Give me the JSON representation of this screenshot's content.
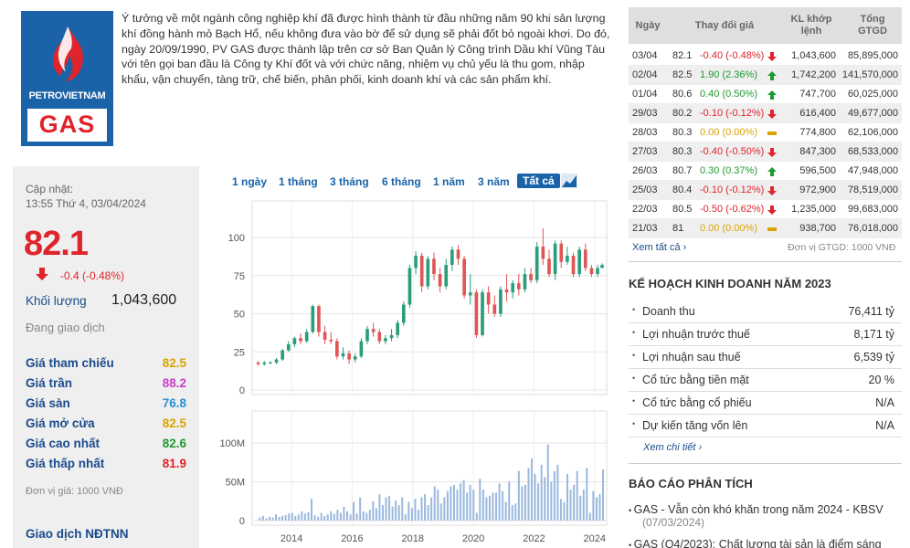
{
  "company": {
    "logo_text_top": "PETROVIETNAM",
    "logo_text_bottom": "GAS",
    "intro": "Ý tưởng về một ngành công nghiệp khí đã được hình thành từ đầu những năm 90 khi sản lượng khí đồng hành mỏ Bạch Hổ, nếu không đưa vào bờ để sử dụng sẽ phải đốt bỏ ngoài khơi. Do đó, ngày 20/09/1990, PV GAS được thành lập trên cơ sở Ban Quản lý Công trình Dầu khí Vũng Tàu với tên gọi ban đầu là Công ty Khí đốt và với chức năng, nhiệm vụ chủ yếu là thu gom, nhập khẩu, vận chuyển, tàng trữ, chế biến, phân phối, kinh doanh khí và các sản phẩm khí."
  },
  "quote": {
    "update_label": "Cập nhật:",
    "update_time": "13:55 Thứ 4, 03/04/2024",
    "price": "82.1",
    "change": "-0.4 (-0.48%)",
    "volume_label": "Khối lượng",
    "volume": "1,043,600",
    "status": "Đang giao dịch",
    "rows": [
      {
        "label": "Giá tham chiếu",
        "value": "82.5",
        "color": "#d9a400"
      },
      {
        "label": "Giá trần",
        "value": "88.2",
        "color": "#c63fc6"
      },
      {
        "label": "Giá sàn",
        "value": "76.8",
        "color": "#2b8fd6"
      },
      {
        "label": "Giá mở cửa",
        "value": "82.5",
        "color": "#d9a400"
      },
      {
        "label": "Giá cao nhất",
        "value": "82.6",
        "color": "#1f9a2f"
      },
      {
        "label": "Giá thấp nhất",
        "value": "81.9",
        "color": "#e0242b"
      }
    ],
    "unit": "Đơn vị giá: 1000 VNĐ",
    "foreign_label": "Giao dịch NĐTNN"
  },
  "chart_tabs": [
    "1 ngày",
    "1 tháng",
    "3 tháng",
    "6 tháng",
    "1 năm",
    "3 năm",
    "Tất cả"
  ],
  "chart_data": {
    "type": "candlestick",
    "price_axis": {
      "ticks": [
        "0",
        "25",
        "50",
        "75",
        "100"
      ],
      "ylim": [
        0,
        100
      ]
    },
    "volume_axis": {
      "ticks": [
        "0",
        "50M",
        "100M"
      ],
      "ylim": [
        0,
        100
      ]
    },
    "x_ticks": [
      "2014",
      "2016",
      "2018",
      "2020",
      "2022",
      "2024"
    ],
    "xlim": [
      2012.7,
      2024.4
    ],
    "candles": [
      {
        "t": 2012.9,
        "o": 18,
        "c": 17,
        "h": 19,
        "l": 16
      },
      {
        "t": 2013.1,
        "o": 17,
        "c": 18,
        "h": 19,
        "l": 16
      },
      {
        "t": 2013.3,
        "o": 18,
        "c": 18,
        "h": 19,
        "l": 17
      },
      {
        "t": 2013.5,
        "o": 18,
        "c": 20,
        "h": 21,
        "l": 17
      },
      {
        "t": 2013.7,
        "o": 20,
        "c": 26,
        "h": 27,
        "l": 19
      },
      {
        "t": 2013.9,
        "o": 26,
        "c": 30,
        "h": 32,
        "l": 25
      },
      {
        "t": 2014.1,
        "o": 30,
        "c": 34,
        "h": 35,
        "l": 28
      },
      {
        "t": 2014.3,
        "o": 34,
        "c": 32,
        "h": 37,
        "l": 30
      },
      {
        "t": 2014.5,
        "o": 32,
        "c": 38,
        "h": 40,
        "l": 31
      },
      {
        "t": 2014.7,
        "o": 38,
        "c": 55,
        "h": 56,
        "l": 37
      },
      {
        "t": 2014.9,
        "o": 55,
        "c": 38,
        "h": 56,
        "l": 35
      },
      {
        "t": 2015.1,
        "o": 38,
        "c": 33,
        "h": 42,
        "l": 30
      },
      {
        "t": 2015.3,
        "o": 33,
        "c": 32,
        "h": 38,
        "l": 30
      },
      {
        "t": 2015.5,
        "o": 32,
        "c": 22,
        "h": 34,
        "l": 20
      },
      {
        "t": 2015.7,
        "o": 22,
        "c": 24,
        "h": 28,
        "l": 20
      },
      {
        "t": 2015.9,
        "o": 24,
        "c": 20,
        "h": 26,
        "l": 17
      },
      {
        "t": 2016.1,
        "o": 20,
        "c": 22,
        "h": 24,
        "l": 18
      },
      {
        "t": 2016.3,
        "o": 22,
        "c": 32,
        "h": 34,
        "l": 21
      },
      {
        "t": 2016.5,
        "o": 32,
        "c": 40,
        "h": 42,
        "l": 30
      },
      {
        "t": 2016.7,
        "o": 40,
        "c": 38,
        "h": 44,
        "l": 35
      },
      {
        "t": 2016.9,
        "o": 38,
        "c": 32,
        "h": 40,
        "l": 30
      },
      {
        "t": 2017.1,
        "o": 32,
        "c": 34,
        "h": 36,
        "l": 30
      },
      {
        "t": 2017.3,
        "o": 34,
        "c": 36,
        "h": 40,
        "l": 32
      },
      {
        "t": 2017.5,
        "o": 36,
        "c": 44,
        "h": 46,
        "l": 34
      },
      {
        "t": 2017.7,
        "o": 44,
        "c": 56,
        "h": 58,
        "l": 42
      },
      {
        "t": 2017.9,
        "o": 56,
        "c": 80,
        "h": 82,
        "l": 54
      },
      {
        "t": 2018.1,
        "o": 80,
        "c": 88,
        "h": 91,
        "l": 76
      },
      {
        "t": 2018.3,
        "o": 88,
        "c": 68,
        "h": 90,
        "l": 64
      },
      {
        "t": 2018.5,
        "o": 68,
        "c": 86,
        "h": 88,
        "l": 66
      },
      {
        "t": 2018.7,
        "o": 86,
        "c": 76,
        "h": 90,
        "l": 72
      },
      {
        "t": 2018.9,
        "o": 76,
        "c": 68,
        "h": 80,
        "l": 64
      },
      {
        "t": 2019.1,
        "o": 68,
        "c": 82,
        "h": 86,
        "l": 66
      },
      {
        "t": 2019.3,
        "o": 82,
        "c": 92,
        "h": 94,
        "l": 78
      },
      {
        "t": 2019.5,
        "o": 92,
        "c": 86,
        "h": 95,
        "l": 82
      },
      {
        "t": 2019.7,
        "o": 86,
        "c": 62,
        "h": 88,
        "l": 60
      },
      {
        "t": 2019.9,
        "o": 62,
        "c": 64,
        "h": 76,
        "l": 56
      },
      {
        "t": 2020.1,
        "o": 64,
        "c": 36,
        "h": 66,
        "l": 34
      },
      {
        "t": 2020.3,
        "o": 36,
        "c": 64,
        "h": 66,
        "l": 35
      },
      {
        "t": 2020.5,
        "o": 64,
        "c": 56,
        "h": 68,
        "l": 50
      },
      {
        "t": 2020.7,
        "o": 56,
        "c": 50,
        "h": 62,
        "l": 48
      },
      {
        "t": 2020.9,
        "o": 50,
        "c": 66,
        "h": 68,
        "l": 48
      },
      {
        "t": 2021.1,
        "o": 66,
        "c": 64,
        "h": 76,
        "l": 58
      },
      {
        "t": 2021.3,
        "o": 64,
        "c": 70,
        "h": 72,
        "l": 60
      },
      {
        "t": 2021.5,
        "o": 70,
        "c": 66,
        "h": 76,
        "l": 62
      },
      {
        "t": 2021.7,
        "o": 66,
        "c": 76,
        "h": 80,
        "l": 64
      },
      {
        "t": 2021.9,
        "o": 76,
        "c": 72,
        "h": 80,
        "l": 70
      },
      {
        "t": 2022.1,
        "o": 72,
        "c": 94,
        "h": 97,
        "l": 70
      },
      {
        "t": 2022.3,
        "o": 94,
        "c": 86,
        "h": 106,
        "l": 82
      },
      {
        "t": 2022.5,
        "o": 86,
        "c": 76,
        "h": 92,
        "l": 74
      },
      {
        "t": 2022.7,
        "o": 76,
        "c": 96,
        "h": 98,
        "l": 72
      },
      {
        "t": 2022.9,
        "o": 96,
        "c": 84,
        "h": 98,
        "l": 80
      },
      {
        "t": 2023.1,
        "o": 84,
        "c": 88,
        "h": 94,
        "l": 82
      },
      {
        "t": 2023.3,
        "o": 88,
        "c": 76,
        "h": 90,
        "l": 74
      },
      {
        "t": 2023.5,
        "o": 76,
        "c": 92,
        "h": 94,
        "l": 74
      },
      {
        "t": 2023.7,
        "o": 92,
        "c": 80,
        "h": 96,
        "l": 78
      },
      {
        "t": 2023.9,
        "o": 80,
        "c": 76,
        "h": 82,
        "l": 74
      },
      {
        "t": 2024.1,
        "o": 76,
        "c": 80,
        "h": 82,
        "l": 74
      },
      {
        "t": 2024.25,
        "o": 80,
        "c": 82,
        "h": 83,
        "l": 80
      }
    ],
    "volumes": [
      4,
      6,
      3,
      5,
      4,
      8,
      5,
      6,
      7,
      9,
      10,
      6,
      8,
      12,
      9,
      11,
      28,
      7,
      5,
      10,
      6,
      8,
      12,
      9,
      14,
      10,
      18,
      12,
      8,
      24,
      9,
      30,
      12,
      10,
      14,
      25,
      16,
      34,
      20,
      30,
      32,
      18,
      26,
      20,
      30,
      8,
      24,
      16,
      28,
      14,
      30,
      34,
      20,
      30,
      44,
      40,
      22,
      30,
      38,
      44,
      46,
      40,
      48,
      52,
      36,
      46,
      40,
      10,
      54,
      40,
      30,
      32,
      36,
      36,
      48,
      38,
      24,
      50,
      20,
      22,
      64,
      44,
      46,
      68,
      80,
      60,
      48,
      72,
      56,
      98,
      50,
      64,
      72,
      28,
      24,
      60,
      40,
      46,
      64,
      32,
      40,
      68,
      10,
      38,
      30,
      34,
      66
    ]
  },
  "history": {
    "headers": [
      "Ngày",
      "Thay đổi giá",
      "KL khớp lệnh",
      "Tổng GTGD"
    ],
    "rows": [
      {
        "date": "03/04",
        "price": "82.1",
        "change": "-0.40 (-0.48%)",
        "dir": "down",
        "vol": "1,043,600",
        "val": "85,895,000"
      },
      {
        "date": "02/04",
        "price": "82.5",
        "change": "1.90 (2.36%)",
        "dir": "up",
        "vol": "1,742,200",
        "val": "141,570,000"
      },
      {
        "date": "01/04",
        "price": "80.6",
        "change": "0.40 (0.50%)",
        "dir": "up",
        "vol": "747,700",
        "val": "60,025,000"
      },
      {
        "date": "29/03",
        "price": "80.2",
        "change": "-0.10 (-0.12%)",
        "dir": "down",
        "vol": "616,400",
        "val": "49,677,000"
      },
      {
        "date": "28/03",
        "price": "80.3",
        "change": "0.00 (0.00%)",
        "dir": "flat",
        "vol": "774,800",
        "val": "62,106,000"
      },
      {
        "date": "27/03",
        "price": "80.3",
        "change": "-0.40 (-0.50%)",
        "dir": "down",
        "vol": "847,300",
        "val": "68,533,000"
      },
      {
        "date": "26/03",
        "price": "80.7",
        "change": "0.30 (0.37%)",
        "dir": "up",
        "vol": "596,500",
        "val": "47,948,000"
      },
      {
        "date": "25/03",
        "price": "80.4",
        "change": "-0.10 (-0.12%)",
        "dir": "down",
        "vol": "972,900",
        "val": "78,519,000"
      },
      {
        "date": "22/03",
        "price": "80.5",
        "change": "-0.50 (-0.62%)",
        "dir": "down",
        "vol": "1,235,000",
        "val": "99,683,000"
      },
      {
        "date": "21/03",
        "price": "81",
        "change": "0.00 (0.00%)",
        "dir": "flat",
        "vol": "938,700",
        "val": "76,018,000"
      }
    ],
    "see_all": "Xem tất cả ›",
    "unit": "Đơn vị GTGD: 1000 VNĐ"
  },
  "plan": {
    "title": "KẾ HOẠCH KINH DOANH NĂM 2023",
    "rows": [
      {
        "label": "Doanh thu",
        "value": "76,411 tỷ"
      },
      {
        "label": "Lợi nhuận trước thuế",
        "value": "8,171 tỷ"
      },
      {
        "label": "Lợi nhuận sau thuế",
        "value": "6,539 tỷ"
      },
      {
        "label": "Cổ tức bằng tiền mặt",
        "value": "20 %"
      },
      {
        "label": "Cổ tức bằng cổ phiếu",
        "value": "N/A"
      },
      {
        "label": "Dự kiến tăng vốn lên",
        "value": "N/A"
      }
    ],
    "see_more": "Xem chi tiết ›"
  },
  "reports": {
    "title": "BÁO CÁO PHÂN TÍCH",
    "items": [
      {
        "title": "GAS - Vẫn còn khó khăn trong năm 2024 - KBSV",
        "date": "(07/03/2024)"
      },
      {
        "title": "GAS (Q4/2023): Chất lượng tài sản là điểm sáng",
        "date": ""
      }
    ]
  },
  "colors": {
    "up": "#1f9a2f",
    "down": "#e0242b",
    "flat": "#d9a400",
    "link": "#1a4b8c",
    "accent": "#1a63a8"
  }
}
